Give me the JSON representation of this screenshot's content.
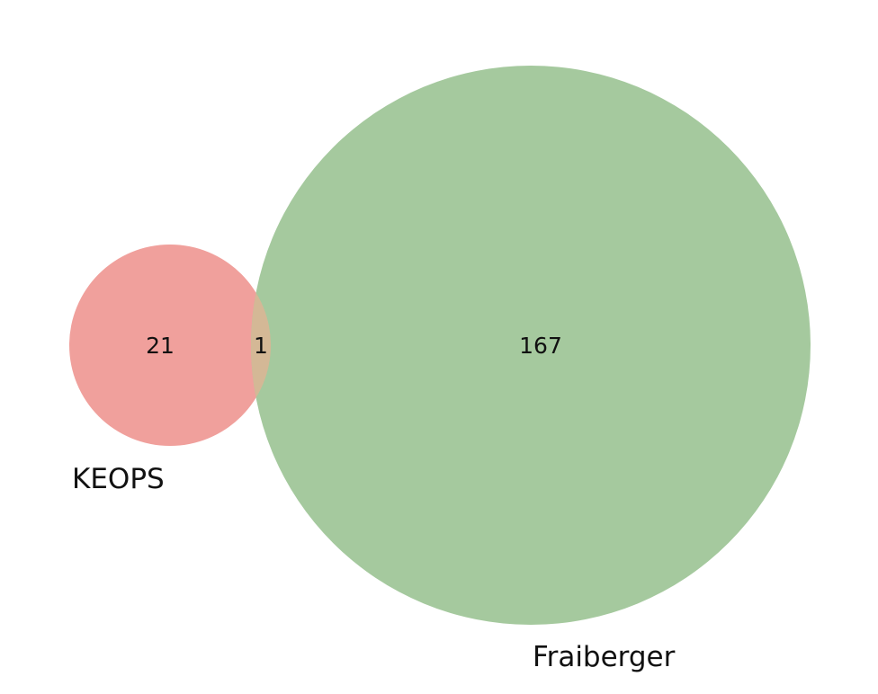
{
  "sets": [
    {
      "name": "KEOPS",
      "only_count": "21",
      "color": "#f0a09c"
    },
    {
      "name": "Fraiberger",
      "only_count": "167",
      "color": "#a5c99e"
    }
  ],
  "overlap": {
    "count": "1",
    "color": "#d4b896"
  }
}
